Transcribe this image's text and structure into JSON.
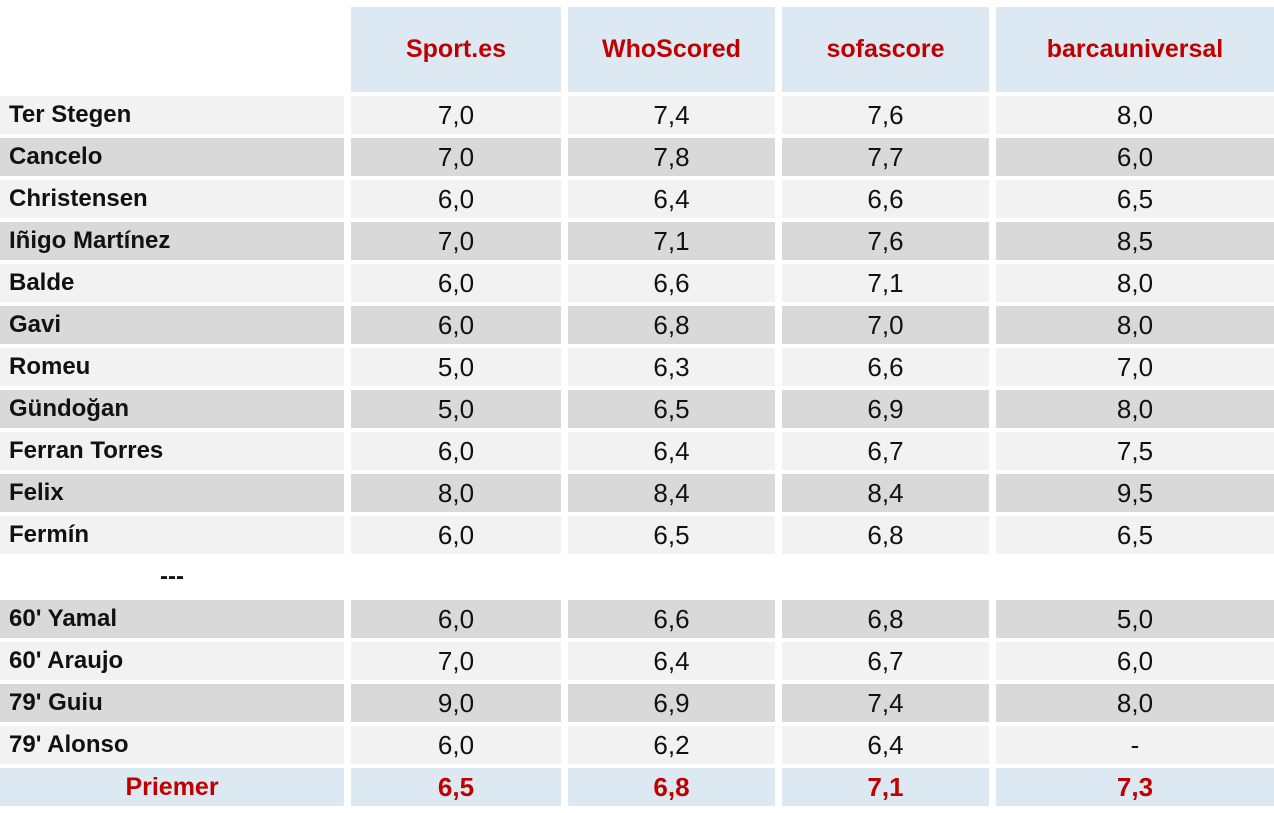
{
  "table": {
    "columns": [
      "Sport.es",
      "WhoScored",
      "sofascore",
      "barcauniversal"
    ],
    "rows": [
      {
        "name": "Ter Stegen",
        "variant": "light",
        "values": [
          "7,0",
          "7,4",
          "7,6",
          "8,0"
        ]
      },
      {
        "name": "Cancelo",
        "variant": "dark",
        "values": [
          "7,0",
          "7,8",
          "7,7",
          "6,0"
        ]
      },
      {
        "name": "Christensen",
        "variant": "light",
        "values": [
          "6,0",
          "6,4",
          "6,6",
          "6,5"
        ]
      },
      {
        "name": "Iñigo Martínez",
        "variant": "dark",
        "values": [
          "7,0",
          "7,1",
          "7,6",
          "8,5"
        ]
      },
      {
        "name": "Balde",
        "variant": "light",
        "values": [
          "6,0",
          "6,6",
          "7,1",
          "8,0"
        ]
      },
      {
        "name": "Gavi",
        "variant": "dark",
        "values": [
          "6,0",
          "6,8",
          "7,0",
          "8,0"
        ]
      },
      {
        "name": "Romeu",
        "variant": "light",
        "values": [
          "5,0",
          "6,3",
          "6,6",
          "7,0"
        ]
      },
      {
        "name": "Gündoğan",
        "variant": "dark",
        "values": [
          "5,0",
          "6,5",
          "6,9",
          "8,0"
        ]
      },
      {
        "name": "Ferran Torres",
        "variant": "light",
        "values": [
          "6,0",
          "6,4",
          "6,7",
          "7,5"
        ]
      },
      {
        "name": "Felix",
        "variant": "dark",
        "values": [
          "8,0",
          "8,4",
          "8,4",
          "9,5"
        ]
      },
      {
        "name": "Fermín",
        "variant": "light",
        "values": [
          "6,0",
          "6,5",
          "6,8",
          "6,5"
        ]
      },
      {
        "name": "---",
        "variant": "separator",
        "values": [
          "",
          "",
          "",
          ""
        ]
      },
      {
        "name": "60' Yamal",
        "variant": "dark",
        "values": [
          "6,0",
          "6,6",
          "6,8",
          "5,0"
        ]
      },
      {
        "name": "60' Araujo",
        "variant": "light",
        "values": [
          "7,0",
          "6,4",
          "6,7",
          "6,0"
        ]
      },
      {
        "name": "79' Guiu",
        "variant": "dark",
        "values": [
          "9,0",
          "6,9",
          "7,4",
          "8,0"
        ]
      },
      {
        "name": "79' Alonso",
        "variant": "light",
        "values": [
          "6,0",
          "6,2",
          "6,4",
          "-"
        ]
      },
      {
        "name": "Priemer",
        "variant": "summary",
        "values": [
          "6,5",
          "6,8",
          "7,1",
          "7,3"
        ]
      }
    ]
  },
  "colors": {
    "header_bg": "#dce9f3",
    "row_light": "#f2f2f2",
    "row_dark": "#d9d9d9",
    "accent_red": "#c00000",
    "text_black": "#111111"
  }
}
